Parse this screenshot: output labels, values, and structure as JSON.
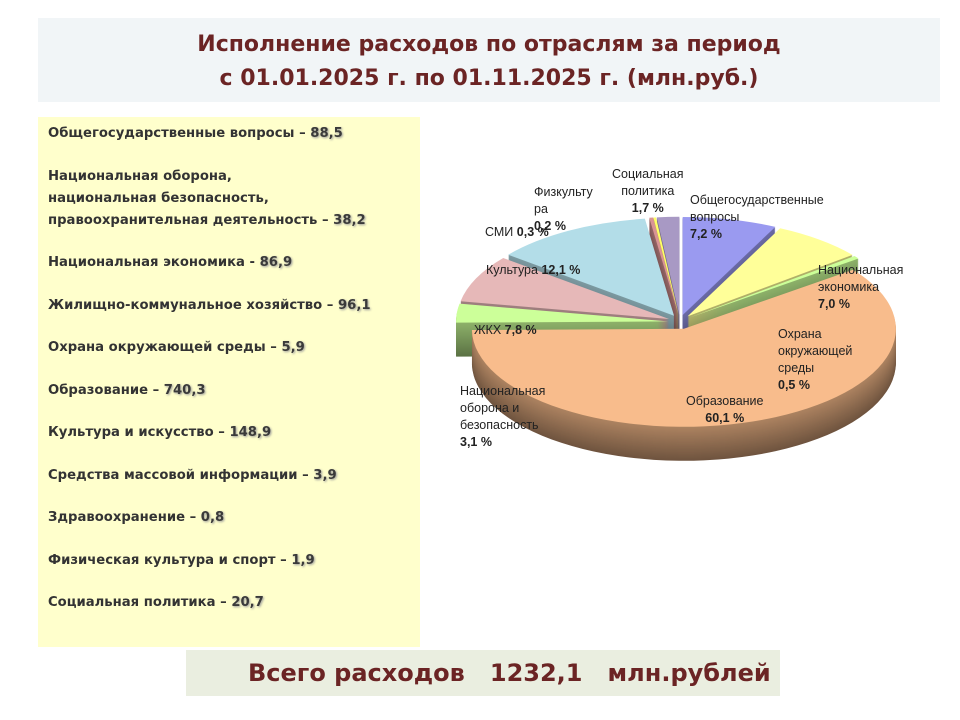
{
  "header": {
    "title_line1": "Исполнение расходов по отраслям за период",
    "title_line2": "с 01.01.2025 г. по 01.11.2025 г.  (млн.руб.)"
  },
  "list": [
    {
      "label": "Общегосударственные вопросы – ",
      "value": "88,5"
    },
    {
      "label": "Национальная оборона,\nнациональная безопасность,\nправоохранительная деятельность – ",
      "value": "38,2"
    },
    {
      "label": "Национальная экономика  -  ",
      "value": "86,9"
    },
    {
      "label": "Жилищно-коммунальное хозяйство – ",
      "value": "96,1"
    },
    {
      "label": "Охрана окружающей среды – ",
      "value": "5,9"
    },
    {
      "label": "Образование  – ",
      "value": "740,3"
    },
    {
      "label": "Культура и искусство  – ",
      "value": "148,9"
    },
    {
      "label": "Средства массовой информации  – ",
      "value": "3,9"
    },
    {
      "label": "Здравоохранение – ",
      "value": "0,8"
    },
    {
      "label": "Физическая культура и спорт – ",
      "value": "1,9"
    },
    {
      "label": "Социальная политика – ",
      "value": "20,7"
    }
  ],
  "total": {
    "text": "Всего расходов   1232,1   млн.рублей"
  },
  "chart_data": {
    "type": "pie",
    "style": "3d-exploded",
    "unit": "%",
    "slices": [
      {
        "name": "Общегосударственные\nвопросы",
        "pct_label": "7,2 %",
        "value": 7.2,
        "color": "#9a9af0"
      },
      {
        "name": "Национальная\nэкономика",
        "pct_label": "7,0 %",
        "value": 7.0,
        "color": "#ffff99"
      },
      {
        "name": "Охрана\nокружающей\nсреды",
        "pct_label": "0,5 %",
        "value": 0.5,
        "color": "#ccff99"
      },
      {
        "name": "Образование",
        "pct_label": "60,1 %",
        "value": 60.1,
        "color": "#f8bc8c"
      },
      {
        "name": "Национальная\nоборона и\nбезопасность",
        "pct_label": "3,1 %",
        "value": 3.1,
        "color": "#ccff99"
      },
      {
        "name": "ЖКХ",
        "pct_label": "7,8 %",
        "value": 7.8,
        "color": "#e6b8b8"
      },
      {
        "name": "Культура",
        "pct_label": "12,1 %",
        "value": 12.1,
        "color": "#b3dde8"
      },
      {
        "name": "СМИ",
        "pct_label": "0,3 %",
        "value": 0.3,
        "color": "#d99494"
      },
      {
        "name": "Физкульту\nра",
        "pct_label": "0,2 %",
        "value": 0.2,
        "color": "#ffff66"
      },
      {
        "name": "Социальная\nполитика",
        "pct_label": "1,7 %",
        "value": 1.7,
        "color": "#a899c4"
      }
    ]
  }
}
